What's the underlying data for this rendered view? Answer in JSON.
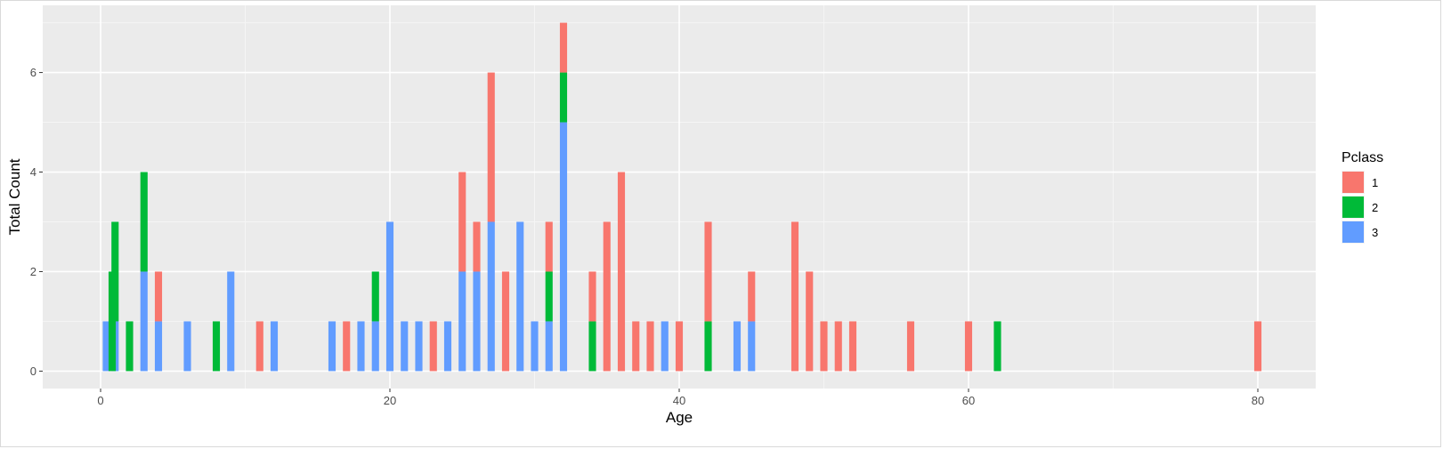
{
  "chart_data": {
    "type": "bar",
    "stacked": true,
    "title": "",
    "xlabel": "Age",
    "ylabel": "Total Count",
    "xlim": [
      -4,
      84
    ],
    "ylim": [
      -0.35,
      7.35
    ],
    "x_ticks": [
      0,
      20,
      40,
      60,
      80
    ],
    "y_ticks": [
      0,
      2,
      4,
      6
    ],
    "grid": true,
    "legend": {
      "title": "Pclass",
      "position": "right",
      "items": [
        {
          "label": "1",
          "color": "#F8766D"
        },
        {
          "label": "2",
          "color": "#00BA38"
        },
        {
          "label": "3",
          "color": "#619CFF"
        }
      ]
    },
    "bar_width": 0.5,
    "series": [
      {
        "name": "3",
        "color": "#619CFF",
        "points": [
          {
            "x": 0.4,
            "y": 1
          },
          {
            "x": 1,
            "y": 1
          },
          {
            "x": 3,
            "y": 2
          },
          {
            "x": 4,
            "y": 1
          },
          {
            "x": 6,
            "y": 1
          },
          {
            "x": 9,
            "y": 2
          },
          {
            "x": 12,
            "y": 1
          },
          {
            "x": 16,
            "y": 1
          },
          {
            "x": 18,
            "y": 1
          },
          {
            "x": 19,
            "y": 1
          },
          {
            "x": 20,
            "y": 3
          },
          {
            "x": 21,
            "y": 1
          },
          {
            "x": 22,
            "y": 1
          },
          {
            "x": 24,
            "y": 1
          },
          {
            "x": 25,
            "y": 2
          },
          {
            "x": 26,
            "y": 2
          },
          {
            "x": 27,
            "y": 3
          },
          {
            "x": 29,
            "y": 3
          },
          {
            "x": 30,
            "y": 1
          },
          {
            "x": 31,
            "y": 1
          },
          {
            "x": 32,
            "y": 5
          },
          {
            "x": 39,
            "y": 1
          },
          {
            "x": 44,
            "y": 1
          },
          {
            "x": 45,
            "y": 1
          }
        ]
      },
      {
        "name": "2",
        "color": "#00BA38",
        "points": [
          {
            "x": 0.8,
            "y": 2
          },
          {
            "x": 1,
            "y": 2
          },
          {
            "x": 2,
            "y": 1
          },
          {
            "x": 3,
            "y": 2
          },
          {
            "x": 8,
            "y": 1
          },
          {
            "x": 19,
            "y": 1
          },
          {
            "x": 31,
            "y": 1
          },
          {
            "x": 32,
            "y": 1
          },
          {
            "x": 34,
            "y": 1
          },
          {
            "x": 42,
            "y": 1
          },
          {
            "x": 62,
            "y": 1
          }
        ]
      },
      {
        "name": "1",
        "color": "#F8766D",
        "points": [
          {
            "x": 4,
            "y": 1
          },
          {
            "x": 11,
            "y": 1
          },
          {
            "x": 17,
            "y": 1
          },
          {
            "x": 23,
            "y": 1
          },
          {
            "x": 25,
            "y": 2
          },
          {
            "x": 26,
            "y": 1
          },
          {
            "x": 27,
            "y": 3
          },
          {
            "x": 28,
            "y": 2
          },
          {
            "x": 31,
            "y": 1
          },
          {
            "x": 32,
            "y": 1
          },
          {
            "x": 34,
            "y": 1
          },
          {
            "x": 35,
            "y": 3
          },
          {
            "x": 36,
            "y": 4
          },
          {
            "x": 37,
            "y": 1
          },
          {
            "x": 38,
            "y": 1
          },
          {
            "x": 40,
            "y": 1
          },
          {
            "x": 42,
            "y": 2
          },
          {
            "x": 45,
            "y": 1
          },
          {
            "x": 48,
            "y": 3
          },
          {
            "x": 49,
            "y": 2
          },
          {
            "x": 50,
            "y": 1
          },
          {
            "x": 51,
            "y": 1
          },
          {
            "x": 52,
            "y": 1
          },
          {
            "x": 56,
            "y": 1
          },
          {
            "x": 60,
            "y": 1
          },
          {
            "x": 80,
            "y": 1
          }
        ]
      }
    ]
  }
}
